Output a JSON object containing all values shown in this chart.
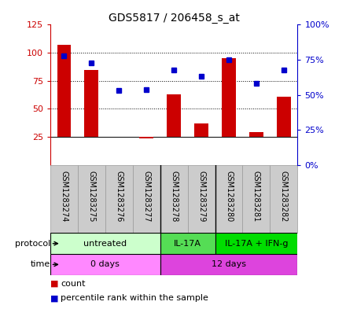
{
  "title": "GDS5817 / 206458_s_at",
  "samples": [
    "GSM1283274",
    "GSM1283275",
    "GSM1283276",
    "GSM1283277",
    "GSM1283278",
    "GSM1283279",
    "GSM1283280",
    "GSM1283281",
    "GSM1283282"
  ],
  "counts": [
    107,
    85,
    25,
    24,
    63,
    37,
    95,
    29,
    61
  ],
  "percentile_ranks": [
    78,
    73,
    53,
    54,
    68,
    63,
    75,
    58,
    68
  ],
  "count_color": "#cc0000",
  "percentile_color": "#0000cc",
  "ylim_left": [
    0,
    125
  ],
  "ylim_right": [
    0,
    100
  ],
  "yticks_left": [
    25,
    50,
    75,
    100,
    125
  ],
  "ytick_labels_left": [
    "25",
    "50",
    "75",
    "100",
    "125"
  ],
  "yticks_right_vals": [
    0,
    25,
    50,
    75,
    100
  ],
  "ytick_labels_right": [
    "0%",
    "25%",
    "50%",
    "75%",
    "100%"
  ],
  "protocol_groups": [
    {
      "label": "untreated",
      "start": 0,
      "end": 4,
      "color": "#ccffcc"
    },
    {
      "label": "IL-17A",
      "start": 4,
      "end": 6,
      "color": "#55dd55"
    },
    {
      "label": "IL-17A + IFN-g",
      "start": 6,
      "end": 9,
      "color": "#00dd00"
    }
  ],
  "time_groups": [
    {
      "label": "0 days",
      "start": 0,
      "end": 4,
      "color": "#ff88ff"
    },
    {
      "label": "12 days",
      "start": 4,
      "end": 9,
      "color": "#dd44dd"
    }
  ],
  "sample_bg_color": "#cccccc",
  "sample_border_color": "#999999",
  "legend_count_label": "count",
  "legend_percentile_label": "percentile rank within the sample",
  "baseline": 25,
  "bar_width": 0.5,
  "grid_lines": [
    50,
    75,
    100
  ],
  "group_dividers": [
    3.5,
    5.5
  ]
}
